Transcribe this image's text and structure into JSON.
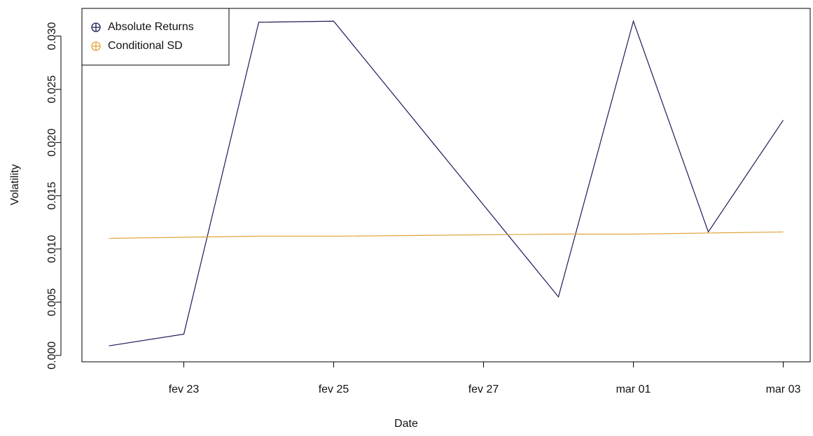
{
  "chart_data": {
    "type": "line",
    "x_label": "Date",
    "y_label": "Volatility",
    "x": [
      "fev 22",
      "fev 23",
      "fev 24",
      "fev 25",
      "fev 28",
      "mar 01",
      "mar 02",
      "mar 03"
    ],
    "xticks": [
      "fev 23",
      "fev 25",
      "fev 27",
      "mar 01",
      "mar 03"
    ],
    "series": [
      {
        "name": "Absolute Returns",
        "color": "#1c1c5a",
        "values": [
          0.0009,
          0.002,
          0.0313,
          0.0314,
          0.0055,
          0.0314,
          0.0116,
          0.0221
        ]
      },
      {
        "name": "Conditional SD",
        "color": "#e0a33a",
        "values": [
          0.011,
          0.0111,
          0.0112,
          0.0112,
          0.0114,
          0.0114,
          0.0115,
          0.0116
        ]
      }
    ],
    "ylim": [
      -0.0006,
      0.0326
    ],
    "yticks": [
      {
        "value": 0,
        "label": "0.000"
      },
      {
        "value": 0.005,
        "label": "0.005"
      },
      {
        "value": 0.01,
        "label": "0.010"
      },
      {
        "value": 0.015,
        "label": "0.015"
      },
      {
        "value": 0.02,
        "label": "0.020"
      },
      {
        "value": 0.025,
        "label": "0.025"
      },
      {
        "value": 0.03,
        "label": "0.030"
      }
    ],
    "legend": "top-left"
  }
}
